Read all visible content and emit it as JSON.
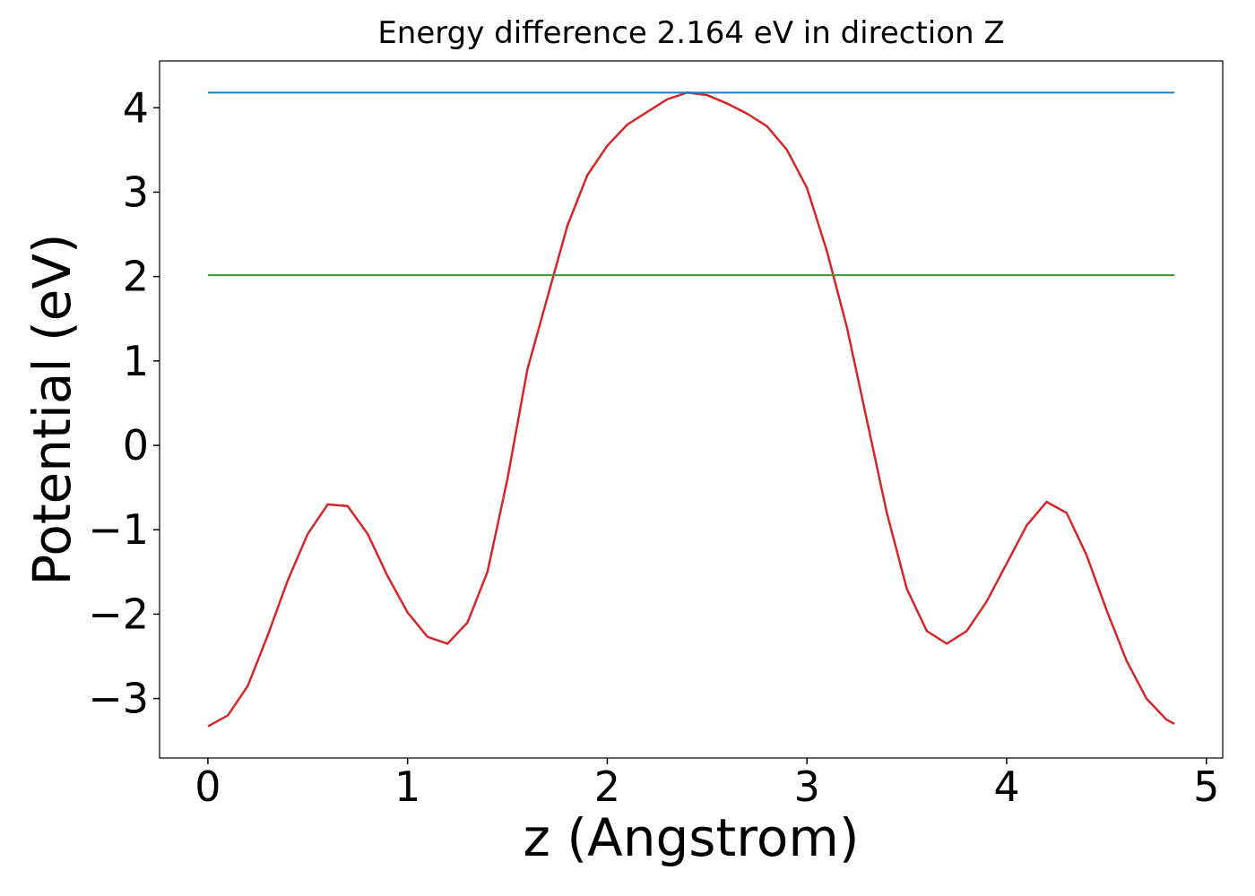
{
  "chart_data": {
    "type": "line",
    "title": "Energy difference 2.164 eV in direction Z",
    "xlabel": "z (Angstrom)",
    "ylabel": "Potential (eV)",
    "xlim": [
      -0.242,
      5.082
    ],
    "ylim": [
      -3.705,
      4.555
    ],
    "xticks": [
      0,
      1,
      2,
      3,
      4,
      5
    ],
    "yticks": [
      {
        "value": -3,
        "label": "−3"
      },
      {
        "value": -2,
        "label": "−2"
      },
      {
        "value": -1,
        "label": "−1"
      },
      0,
      1,
      2,
      3,
      4
    ],
    "grid": false,
    "series": [
      {
        "color": "#d62728",
        "x": [
          0,
          0.1,
          0.2,
          0.3,
          0.4,
          0.5,
          0.6,
          0.7,
          0.8,
          0.9,
          1.0,
          1.1,
          1.2,
          1.3,
          1.4,
          1.5,
          1.6,
          1.7,
          1.8,
          1.9,
          2.0,
          2.1,
          2.2,
          2.3,
          2.4,
          2.5,
          2.6,
          2.7,
          2.8,
          2.9,
          3.0,
          3.1,
          3.2,
          3.3,
          3.4,
          3.5,
          3.6,
          3.7,
          3.8,
          3.9,
          4.0,
          4.1,
          4.2,
          4.3,
          4.4,
          4.5,
          4.6,
          4.7,
          4.8,
          4.84
        ],
        "values": [
          -3.33,
          -3.2,
          -2.85,
          -2.25,
          -1.6,
          -1.05,
          -0.7,
          -0.72,
          -1.05,
          -1.55,
          -1.98,
          -2.27,
          -2.35,
          -2.1,
          -1.5,
          -0.4,
          0.9,
          1.75,
          2.6,
          3.2,
          3.55,
          3.8,
          3.95,
          4.1,
          4.18,
          4.15,
          4.05,
          3.93,
          3.78,
          3.5,
          3.05,
          2.3,
          1.4,
          0.3,
          -0.8,
          -1.7,
          -2.2,
          -2.35,
          -2.2,
          -1.85,
          -1.4,
          -0.95,
          -0.67,
          -0.8,
          -1.3,
          -1.95,
          -2.55,
          -3.0,
          -3.25,
          -3.3
        ]
      },
      {
        "color": "#1f77b4",
        "x": [
          0,
          4.84
        ],
        "values": [
          4.18,
          4.18
        ]
      },
      {
        "color": "#2ca02c",
        "x": [
          0,
          4.84
        ],
        "values": [
          2.016,
          2.016
        ]
      }
    ]
  }
}
